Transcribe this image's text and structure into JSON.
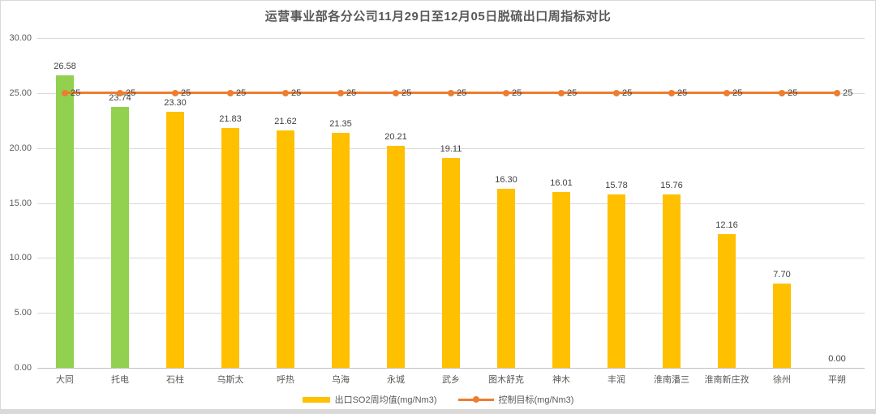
{
  "title": "运营事业部各分公司11月29日至12月05日脱硫出口周指标对比",
  "chart_data": {
    "type": "bar",
    "title": "运营事业部各分公司11月29日至12月05日脱硫出口周指标对比",
    "categories": [
      "大同",
      "托电",
      "石柱",
      "乌斯太",
      "呼热",
      "乌海",
      "永城",
      "武乡",
      "图木舒克",
      "神木",
      "丰润",
      "淮南潘三",
      "淮南新庄孜",
      "徐州",
      "平朔"
    ],
    "series": [
      {
        "name": "出口SO2周均值(mg/Nm3)",
        "type": "bar",
        "values": [
          26.58,
          23.74,
          23.3,
          21.83,
          21.62,
          21.35,
          20.21,
          19.11,
          16.3,
          16.01,
          15.78,
          15.76,
          12.16,
          7.7,
          0.0
        ],
        "labels": [
          "26.58",
          "23.74",
          "23.30",
          "21.83",
          "21.62",
          "21.35",
          "20.21",
          "19.11",
          "16.30",
          "16.01",
          "15.78",
          "15.76",
          "12.16",
          "7.70",
          "0.00"
        ],
        "colors": [
          "#92D050",
          "#92D050",
          "#FFC000",
          "#FFC000",
          "#FFC000",
          "#FFC000",
          "#FFC000",
          "#FFC000",
          "#FFC000",
          "#FFC000",
          "#FFC000",
          "#FFC000",
          "#FFC000",
          "#FFC000",
          "#FFC000"
        ]
      },
      {
        "name": "控制目标(mg/Nm3)",
        "type": "line",
        "values": [
          25,
          25,
          25,
          25,
          25,
          25,
          25,
          25,
          25,
          25,
          25,
          25,
          25,
          25,
          25
        ],
        "point_label": "25",
        "color": "#ED7D31"
      }
    ],
    "ylim": [
      0,
      30
    ],
    "yticks": [
      {
        "value": 30,
        "label": "30.00"
      },
      {
        "value": 25,
        "label": "25.00"
      },
      {
        "value": 20,
        "label": "20.00"
      },
      {
        "value": 15,
        "label": "15.00"
      },
      {
        "value": 10,
        "label": "10.00"
      },
      {
        "value": 5,
        "label": "5.00"
      },
      {
        "value": 0,
        "label": "0.00"
      }
    ],
    "grid": true,
    "legend_position": "bottom"
  },
  "colors": {
    "bar_default": "#FFC000",
    "bar_highlight": "#92D050",
    "line": "#ED7D31",
    "gridline": "#D9D9D9",
    "axis_line": "#BFBFBF",
    "title_text": "#595959",
    "axis_text": "#595959",
    "data_label_text": "#404040",
    "chart_border": "#D9D9D9"
  }
}
